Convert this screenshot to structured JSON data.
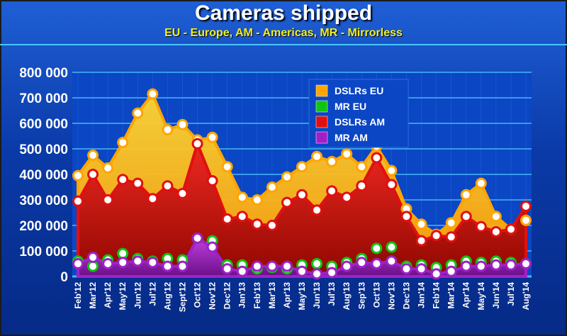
{
  "chart_data": {
    "type": "area",
    "title": "Cameras shipped",
    "subtitle": "EU - Europe, AM - Americas, MR - Mirrorless",
    "ylim": [
      0,
      800000
    ],
    "yticks": [
      0,
      100000,
      200000,
      300000,
      400000,
      500000,
      600000,
      700000,
      800000
    ],
    "ytick_labels": [
      "0",
      "100 000",
      "200 000",
      "300 000",
      "400 000",
      "500 000",
      "600 000",
      "700 000",
      "800 000"
    ],
    "grid": true,
    "legend_position": "top-center",
    "categories": [
      "Feb'12",
      "Mar'12",
      "Apr'12",
      "May'12",
      "Jun'12",
      "Jul'12",
      "Aug'12",
      "Sept'12",
      "Oct'12",
      "Nov'12",
      "Dec'12",
      "Jan'13",
      "Feb'13",
      "Mar'13",
      "Apr'13",
      "May'13",
      "Jun'13",
      "Jul'13",
      "Aug'13",
      "Sep'13",
      "Oct'13",
      "Nov'13",
      "Dec'13",
      "Jan'14",
      "Feb'14",
      "Mar'14",
      "Apr'14",
      "May'14",
      "Jun'14",
      "Jul'14",
      "Aug'14"
    ],
    "x_tick_labels": [
      "Feb'12",
      "Mar'12",
      "Apr'12",
      "May'12",
      "Jun'12",
      "Jul'12",
      "Aug'12",
      "Sept'12",
      "Oct'12",
      "Nov'12",
      "Dec'12",
      "Jan'13",
      "Feb'13",
      "Mar'13",
      "Apr'13",
      "May'13",
      "Jun'13",
      "Jul'13",
      "Aug'13",
      "Sep'13",
      "Oct'13",
      "Nov'13",
      "Dec'13",
      "Jan'14",
      "Feb'14",
      "Mar'14",
      "Apr'14",
      "May'14",
      "Jun'14",
      "Jul'14",
      "Aug'14"
    ],
    "series": [
      {
        "name": "DSLRs EU",
        "color": "#ffa500",
        "fill_top": "#ffd733",
        "fill_bottom": "#ff9a00",
        "values": [
          395000,
          475000,
          425000,
          525000,
          640000,
          715000,
          575000,
          595000,
          535000,
          545000,
          430000,
          310000,
          300000,
          350000,
          390000,
          430000,
          470000,
          450000,
          480000,
          430000,
          510000,
          415000,
          265000,
          205000,
          165000,
          210000,
          320000,
          365000,
          235000,
          185000,
          220000
        ]
      },
      {
        "name": "MR EU",
        "color": "#11c411",
        "fill_top": "#44e044",
        "fill_bottom": "#0a9a0a",
        "values": [
          60000,
          40000,
          65000,
          90000,
          70000,
          60000,
          70000,
          65000,
          150000,
          140000,
          45000,
          45000,
          30000,
          35000,
          30000,
          45000,
          50000,
          40000,
          55000,
          70000,
          110000,
          115000,
          40000,
          45000,
          35000,
          45000,
          60000,
          55000,
          60000,
          55000,
          50000
        ]
      },
      {
        "name": "DSLRs AM",
        "color": "#e01010",
        "fill_top": "#f02020",
        "fill_bottom": "#8a0000",
        "values": [
          295000,
          400000,
          300000,
          380000,
          365000,
          305000,
          355000,
          325000,
          520000,
          375000,
          225000,
          235000,
          205000,
          200000,
          290000,
          320000,
          260000,
          335000,
          310000,
          355000,
          465000,
          360000,
          235000,
          140000,
          160000,
          155000,
          235000,
          195000,
          175000,
          185000,
          275000
        ]
      },
      {
        "name": "MR AM",
        "color": "#a020c8",
        "fill_top": "#c040e8",
        "fill_bottom": "#6a1090",
        "values": [
          50000,
          75000,
          50000,
          55000,
          60000,
          55000,
          40000,
          40000,
          150000,
          115000,
          30000,
          20000,
          40000,
          40000,
          40000,
          20000,
          10000,
          15000,
          40000,
          55000,
          50000,
          60000,
          30000,
          30000,
          10000,
          20000,
          40000,
          40000,
          45000,
          45000,
          50000
        ]
      }
    ],
    "legend": [
      "DSLRs EU",
      "MR EU",
      "DSLRs AM",
      "MR AM"
    ]
  }
}
